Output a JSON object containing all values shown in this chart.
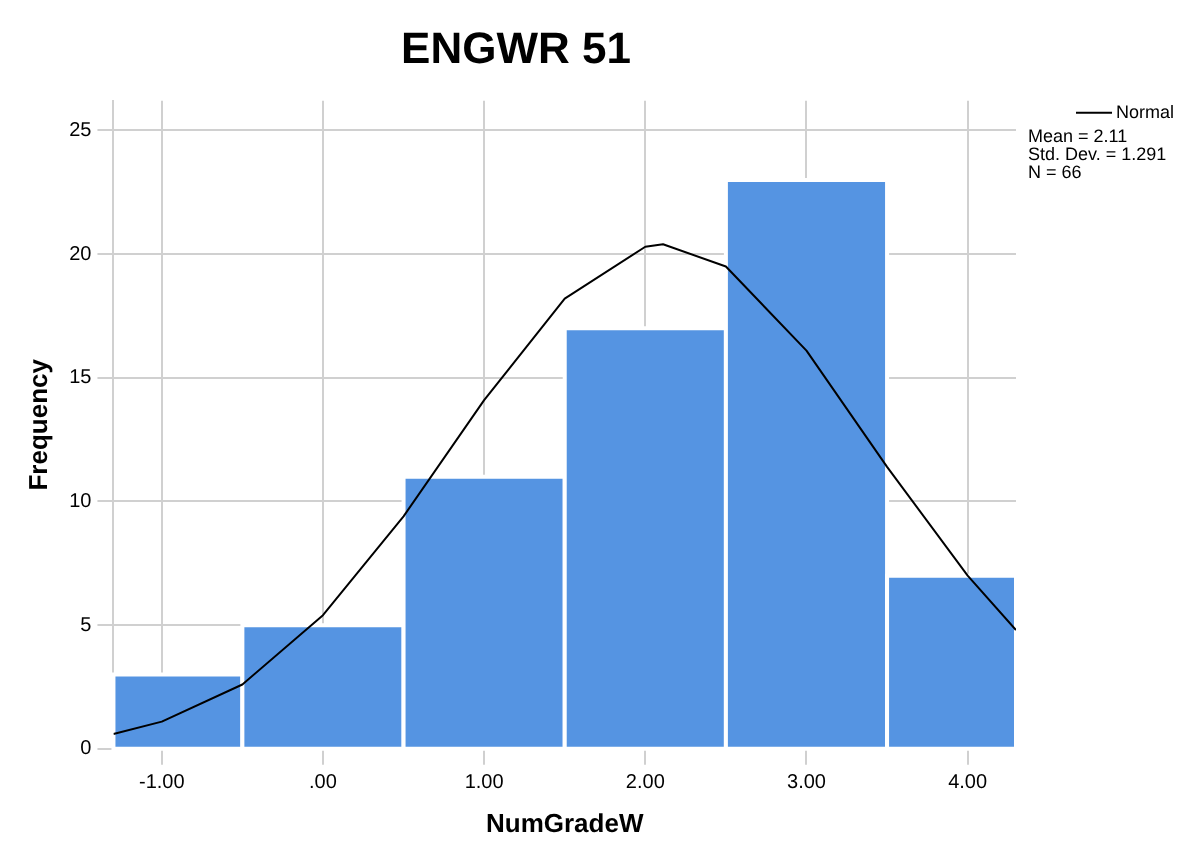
{
  "chart_data": {
    "type": "histogram",
    "title": "ENGWR 51",
    "xlabel": "NumGradeW",
    "ylabel": "Frequency",
    "bins": [
      -1.3,
      -0.5,
      0.5,
      1.5,
      2.5,
      3.5,
      4.3
    ],
    "values": [
      3,
      5,
      11,
      17,
      23,
      7
    ],
    "color": "#5594e2",
    "series": [
      {
        "name": "Normal",
        "type": "line",
        "color": "#000000",
        "x": [
          -1.3,
          -1,
          -0.5,
          0,
          0.5,
          1,
          1.5,
          2,
          2.11,
          2.5,
          3,
          3.5,
          4,
          4.3
        ],
        "values": [
          0.6,
          1.1,
          2.6,
          5.4,
          9.4,
          14.1,
          18.2,
          20.3,
          20.4,
          19.5,
          16.1,
          11.4,
          7.0,
          4.8
        ]
      }
    ],
    "xlim": [
      -1.3,
      4.3
    ],
    "xticks": [
      {
        "value": -1,
        "label": "-1.00"
      },
      {
        "value": 0,
        "label": ".00"
      },
      {
        "value": 1,
        "label": "1.00"
      },
      {
        "value": 2,
        "label": "2.00"
      },
      {
        "value": 3,
        "label": "3.00"
      },
      {
        "value": 4,
        "label": "4.00"
      }
    ],
    "ylim": [
      0,
      26.2
    ],
    "yticks": [
      0,
      5,
      10,
      15,
      20,
      25
    ],
    "grid": true,
    "legend": "top right",
    "marker": "none",
    "line_style": "solid",
    "annotations": [
      "Mean = 2.11",
      "Std. Dev. = 1.291",
      "N = 66"
    ]
  }
}
